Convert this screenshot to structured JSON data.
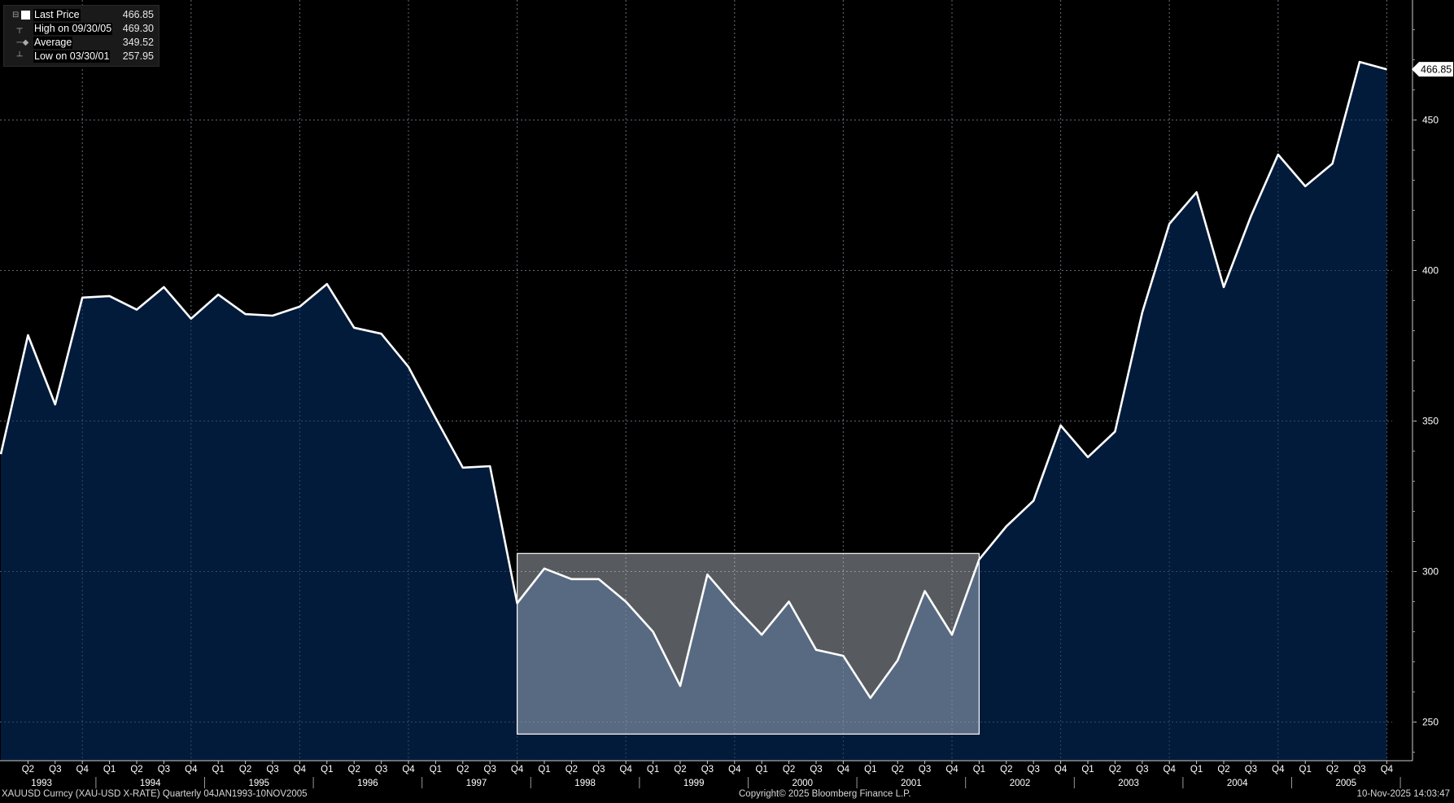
{
  "legend": {
    "last_label": "Last Price",
    "last_value": "466.85",
    "high_label": "High on 09/30/05",
    "high_value": "469.30",
    "avg_label": "Average",
    "avg_value": "349.52",
    "low_label": "Low on 03/30/01",
    "low_value": "257.95"
  },
  "footer": {
    "left": "XAUUSD Curncy (XAU-USD X-RATE) Quarterly 04JAN1993-10NOV2005",
    "center": "Copyright© 2025 Bloomberg Finance L.P.",
    "right": "10-Nov-2025 14:03:47"
  },
  "chart_data": {
    "type": "area",
    "series": [
      {
        "name": "Last Price",
        "x": [
          "Q1 1993",
          "Q2 1993",
          "Q3 1993",
          "Q4 1993",
          "Q1 1994",
          "Q2 1994",
          "Q3 1994",
          "Q4 1994",
          "Q1 1995",
          "Q2 1995",
          "Q3 1995",
          "Q4 1995",
          "Q1 1996",
          "Q2 1996",
          "Q3 1996",
          "Q4 1996",
          "Q1 1997",
          "Q2 1997",
          "Q3 1997",
          "Q4 1997",
          "Q1 1998",
          "Q2 1998",
          "Q3 1998",
          "Q4 1998",
          "Q1 1999",
          "Q2 1999",
          "Q3 1999",
          "Q4 1999",
          "Q1 2000",
          "Q2 2000",
          "Q3 2000",
          "Q4 2000",
          "Q1 2001",
          "Q2 2001",
          "Q3 2001",
          "Q4 2001",
          "Q1 2002",
          "Q2 2002",
          "Q3 2002",
          "Q4 2002",
          "Q1 2003",
          "Q2 2003",
          "Q3 2003",
          "Q4 2003",
          "Q1 2004",
          "Q2 2004",
          "Q3 2004",
          "Q4 2004",
          "Q1 2005",
          "Q2 2005",
          "Q3 2005",
          "Q4 2005"
        ],
        "values": [
          339,
          378.5,
          355.5,
          391,
          391.5,
          387,
          394.5,
          384,
          392,
          385.5,
          385,
          388,
          395.5,
          381,
          379,
          368,
          351,
          334.5,
          335,
          289.5,
          301,
          297.5,
          297.5,
          290,
          280,
          262,
          299,
          288.5,
          279,
          290,
          274,
          272,
          258,
          270.5,
          293.5,
          279,
          304,
          315,
          323.5,
          348.5,
          338,
          346.5,
          386,
          415.5,
          426,
          394.5,
          418,
          438.5,
          428,
          435.5,
          469.3,
          466.85
        ]
      }
    ],
    "x_tick_quarters": [
      "Q2",
      "Q3",
      "Q4",
      "Q1",
      "Q2",
      "Q3",
      "Q4",
      "Q1",
      "Q2",
      "Q3",
      "Q4",
      "Q1",
      "Q2",
      "Q3",
      "Q4",
      "Q1",
      "Q2",
      "Q3",
      "Q4",
      "Q1",
      "Q2",
      "Q3",
      "Q4",
      "Q1",
      "Q2",
      "Q3",
      "Q4",
      "Q1",
      "Q2",
      "Q3",
      "Q4",
      "Q1",
      "Q2",
      "Q3",
      "Q4",
      "Q1",
      "Q2",
      "Q3",
      "Q4",
      "Q1",
      "Q2",
      "Q3",
      "Q4",
      "Q1",
      "Q2",
      "Q3",
      "Q4",
      "Q1",
      "Q2",
      "Q3",
      "Q4"
    ],
    "x_tick_years": [
      "1993",
      "1994",
      "1995",
      "1996",
      "1997",
      "1998",
      "1999",
      "2000",
      "2001",
      "2002",
      "2003",
      "2004",
      "2005"
    ],
    "y_ticks": [
      "250",
      "300",
      "350",
      "400",
      "450"
    ],
    "ylim": [
      238,
      490
    ],
    "last_value_label": "466.85",
    "highlight_range": {
      "x_start": "Q4 1997",
      "x_end": "Q1 2002",
      "y_low": 246,
      "y_high": 306
    },
    "grid": true,
    "legend_position": "top-left",
    "colors": {
      "area": "#031b3b",
      "line": "#ffffff",
      "highlight": "#cfd8e3",
      "grid": "#777777"
    }
  }
}
